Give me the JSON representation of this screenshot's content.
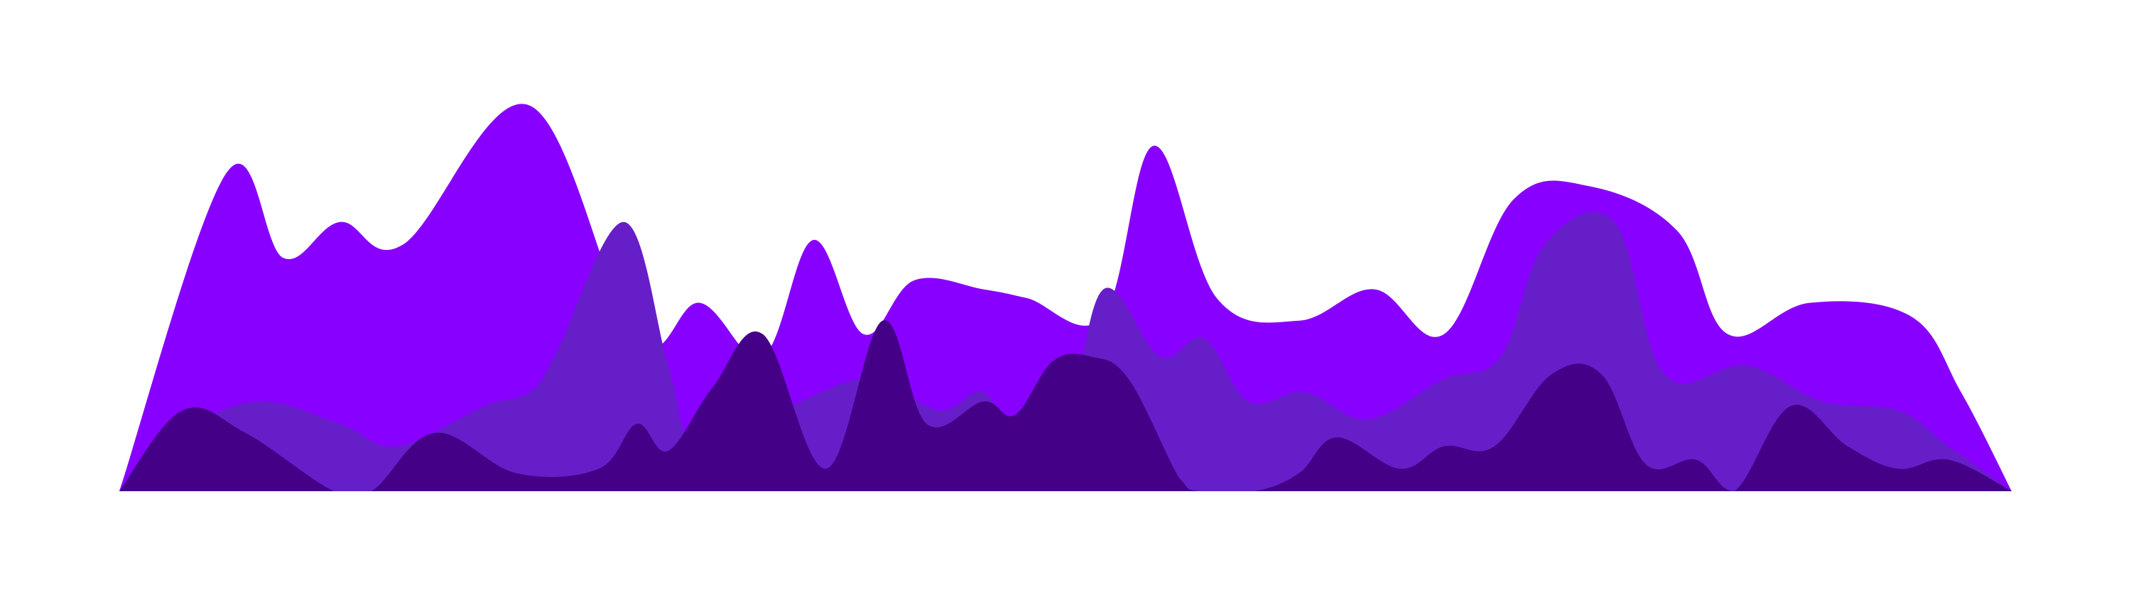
{
  "chart_data": {
    "type": "area",
    "title": "",
    "xlabel": "",
    "ylabel": "",
    "xlim": [
      0,
      30
    ],
    "ylim": [
      0,
      100
    ],
    "grid": false,
    "legend": "none",
    "colors": [
      "#8800ff",
      "#661ec8",
      "#440087"
    ],
    "series": [
      {
        "color": "#8800ff",
        "x": [
          0,
          1.7,
          2.6,
          3.5,
          4.5,
          6.5,
          8.2,
          9.2,
          10.2,
          11.0,
          11.8,
          12.6,
          13.7,
          14.4,
          15.6,
          16.4,
          17.4,
          18.7,
          19.9,
          21.0,
          22.1,
          23.3,
          24.7,
          25.5,
          26.8,
          28.4,
          29.2,
          30
        ],
        "y": [
          0,
          71,
          52,
          60,
          55,
          86,
          34,
          42,
          30,
          56,
          35,
          47,
          45,
          43,
          39,
          77,
          43,
          38,
          45,
          35,
          65,
          68,
          58,
          35,
          42,
          39,
          22,
          0
        ]
      },
      {
        "color": "#661ec8",
        "x": [
          0,
          1.0,
          2.2,
          3.5,
          4.4,
          5.8,
          6.5,
          6.9,
          8.0,
          8.7,
          9.1,
          10.0,
          10.8,
          11.9,
          13.0,
          13.7,
          14.3,
          15.0,
          15.6,
          16.5,
          17.2,
          17.9,
          18.8,
          19.8,
          21.0,
          21.9,
          22.6,
          23.7,
          24.5,
          25.8,
          27.0,
          28.2,
          29.0,
          30
        ],
        "y": [
          0,
          13,
          20,
          15,
          10,
          19,
          22,
          30,
          60,
          28,
          10,
          15,
          20,
          25,
          18,
          22,
          10,
          14,
          45,
          30,
          34,
          20,
          22,
          16,
          25,
          30,
          55,
          60,
          26,
          28,
          20,
          18,
          10,
          0
        ]
      },
      {
        "color": "#440087",
        "x": [
          0,
          1.0,
          2.0,
          3.4,
          4.0,
          5.0,
          6.3,
          7.6,
          8.2,
          8.7,
          9.4,
          10.2,
          11.2,
          12.1,
          12.8,
          13.7,
          14.2,
          14.8,
          15.4,
          16.0,
          16.8,
          17.1,
          18.0,
          18.7,
          19.3,
          20.3,
          21.0,
          21.8,
          22.7,
          23.5,
          24.2,
          25.0,
          25.6,
          26.5,
          27.4,
          28.2,
          29.0,
          30
        ],
        "y": [
          0,
          18,
          13,
          0,
          0,
          13,
          4,
          5,
          15,
          9,
          23,
          35,
          5,
          38,
          15,
          20,
          17,
          29,
          30,
          25,
          3,
          0,
          0,
          4,
          12,
          5,
          10,
          10,
          26,
          26,
          6,
          7,
          0,
          19,
          10,
          5,
          7,
          0
        ]
      }
    ]
  }
}
